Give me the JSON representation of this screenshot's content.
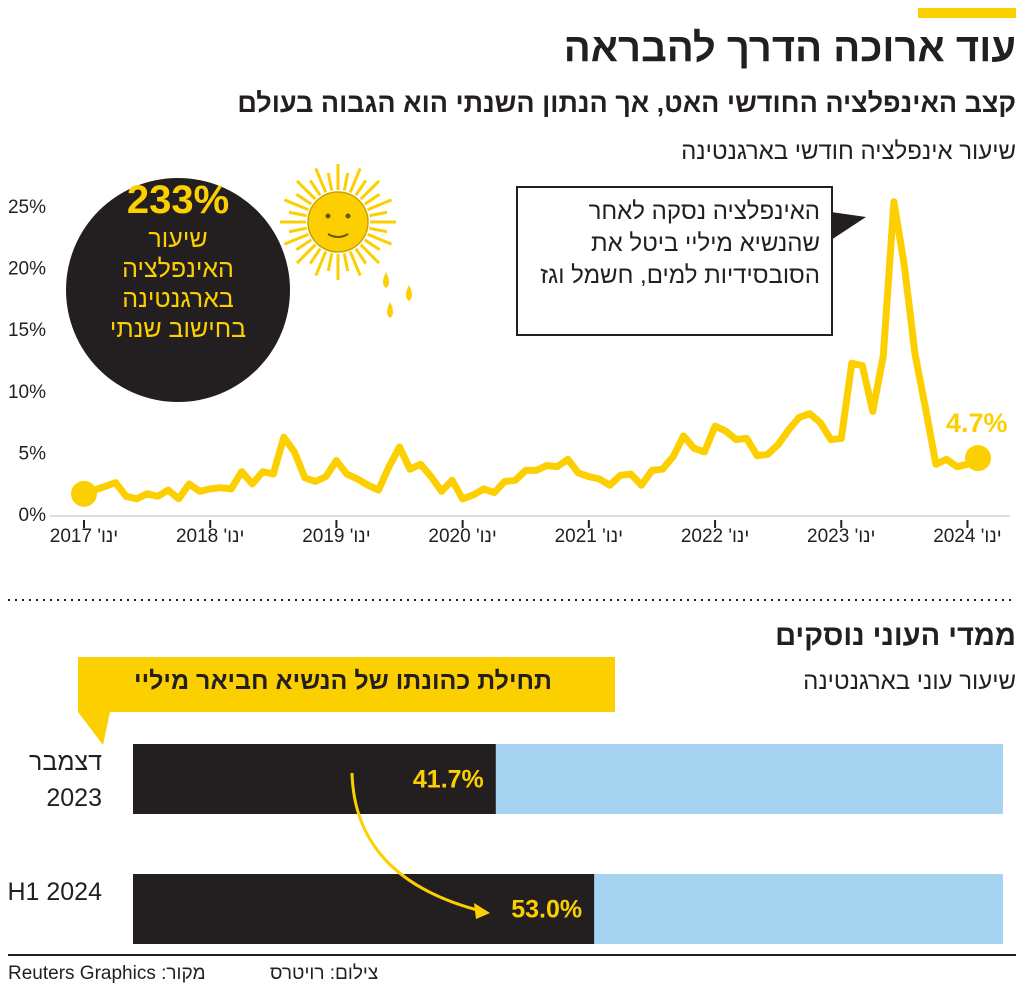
{
  "header": {
    "title": "עוד ארוכה הדרך להבראה",
    "subtitle": "קצב האינפלציה החודשי האט, אך הנתון השנתי הוא הגבוה בעולם"
  },
  "chart_data": [
    {
      "type": "line",
      "title": "שיעור אינפלציה חודשי בארגנטינה",
      "x": [
        "2017-01",
        "2017-02",
        "2017-03",
        "2017-04",
        "2017-05",
        "2017-06",
        "2017-07",
        "2017-08",
        "2017-09",
        "2017-10",
        "2017-11",
        "2017-12",
        "2018-01",
        "2018-02",
        "2018-03",
        "2018-04",
        "2018-05",
        "2018-06",
        "2018-07",
        "2018-08",
        "2018-09",
        "2018-10",
        "2018-11",
        "2018-12",
        "2019-01",
        "2019-02",
        "2019-03",
        "2019-04",
        "2019-05",
        "2019-06",
        "2019-07",
        "2019-08",
        "2019-09",
        "2019-10",
        "2019-11",
        "2019-12",
        "2020-01",
        "2020-02",
        "2020-03",
        "2020-04",
        "2020-05",
        "2020-06",
        "2020-07",
        "2020-08",
        "2020-09",
        "2020-10",
        "2020-11",
        "2020-12",
        "2021-01",
        "2021-02",
        "2021-03",
        "2021-04",
        "2021-05",
        "2021-06",
        "2021-07",
        "2021-08",
        "2021-09",
        "2021-10",
        "2021-11",
        "2021-12",
        "2022-01",
        "2022-02",
        "2022-03",
        "2022-04",
        "2022-05",
        "2022-06",
        "2022-07",
        "2022-08",
        "2022-09",
        "2022-10",
        "2022-11",
        "2022-12",
        "2023-01",
        "2023-02",
        "2023-03",
        "2023-04",
        "2023-05",
        "2023-06",
        "2023-07",
        "2023-08",
        "2023-09",
        "2023-10",
        "2023-11",
        "2023-12",
        "2024-01",
        "2024-02"
      ],
      "values": [
        1.8,
        2.1,
        2.4,
        2.7,
        1.6,
        1.4,
        1.8,
        1.6,
        2.1,
        1.4,
        2.6,
        2.0,
        2.2,
        2.3,
        2.2,
        3.6,
        2.6,
        3.6,
        3.4,
        6.4,
        5.2,
        3.1,
        2.8,
        3.2,
        4.5,
        3.4,
        3.0,
        2.5,
        2.1,
        4.0,
        5.6,
        3.8,
        4.2,
        3.2,
        2.0,
        2.9,
        1.4,
        1.7,
        2.2,
        1.9,
        2.8,
        2.9,
        3.7,
        3.7,
        4.1,
        4.0,
        4.6,
        3.5,
        3.2,
        3.0,
        2.5,
        3.3,
        3.4,
        2.5,
        3.7,
        3.8,
        4.8,
        6.5,
        5.5,
        5.2,
        7.3,
        6.9,
        6.2,
        6.3,
        4.9,
        5.0,
        5.8,
        7.0,
        8.0,
        8.3,
        7.6,
        6.2,
        6.3,
        12.4,
        12.2,
        8.5,
        13.0,
        25.5,
        20.3,
        13.2,
        8.8,
        4.2,
        4.6,
        4.0,
        4.2,
        4.7
      ],
      "color": "#fcd000",
      "xlim": [
        "2017-01",
        "2024-02"
      ],
      "ylim": [
        0,
        26.5
      ],
      "yticks": [
        {
          "value": 0,
          "label": "0%"
        },
        {
          "value": 5,
          "label": "5%"
        },
        {
          "value": 10,
          "label": "10%"
        },
        {
          "value": 15,
          "label": "15%"
        },
        {
          "value": 20,
          "label": "20%"
        },
        {
          "value": 25,
          "label": "25%"
        }
      ],
      "xticks": [
        {
          "value": "2017-01",
          "label": "ינו' 2017"
        },
        {
          "value": "2018-01",
          "label": "ינו' 2018"
        },
        {
          "value": "2019-01",
          "label": "ינו' 2019"
        },
        {
          "value": "2020-01",
          "label": "ינו' 2020"
        },
        {
          "value": "2021-01",
          "label": "ינו' 2021"
        },
        {
          "value": "2022-01",
          "label": "ינו' 2022"
        },
        {
          "value": "2023-01",
          "label": "ינו' 2023"
        },
        {
          "value": "2024-01",
          "label": "ינו' 2024"
        }
      ],
      "grid": false,
      "end_label": "4.7%",
      "annual_rate": "233%",
      "annual_note": "שיעור האינפלציה בארגנטינה בחישוב שנתי",
      "callout": "האינפלציה נסקה לאחר שהנשיא מיליי ביטל את הסובסידיות למים, חשמל וגז"
    },
    {
      "type": "bar",
      "orientation": "horizontal",
      "title": "ממדי העוני נוסקים",
      "subtitle": "שיעור עוני בארגנטינה",
      "categories": [
        "דצמבר 2023",
        "H1 2024"
      ],
      "values": [
        41.7,
        53.0
      ],
      "value_labels": [
        "41.7%",
        "53.0%"
      ],
      "color": "#231f20",
      "track_color": "#a6d3f0",
      "xlim": [
        0,
        100
      ],
      "annotation": "תחילת כהונתו של הנשיא חביאר מיליי"
    }
  ],
  "footer": {
    "credit": "צילום: רויטרס",
    "source": "מקור: Reuters Graphics"
  }
}
